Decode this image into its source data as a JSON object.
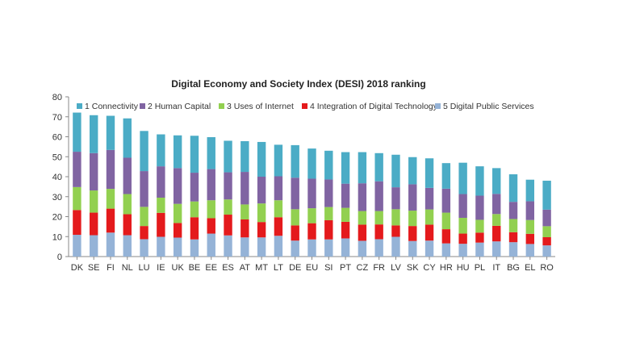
{
  "chart_data": {
    "type": "bar",
    "stacked": true,
    "title": "Digital Economy and Society Index (DESI) 2018 ranking",
    "xlabel": "",
    "ylabel": "",
    "ylim": [
      0,
      80
    ],
    "yticks": [
      0,
      10,
      20,
      30,
      40,
      50,
      60,
      70,
      80
    ],
    "legend_position": "top",
    "categories": [
      "DK",
      "SE",
      "FI",
      "NL",
      "LU",
      "IE",
      "UK",
      "BE",
      "EE",
      "ES",
      "AT",
      "MT",
      "LT",
      "DE",
      "EU",
      "SI",
      "PT",
      "CZ",
      "FR",
      "LV",
      "SK",
      "CY",
      "HR",
      "HU",
      "PL",
      "IT",
      "BG",
      "EL",
      "RO"
    ],
    "series": [
      {
        "name": "5 Digital Public Services",
        "color": "#95b3d7",
        "values": [
          10.9,
          10.7,
          12.0,
          10.7,
          8.7,
          9.9,
          9.5,
          8.6,
          11.5,
          10.6,
          9.6,
          9.6,
          10.4,
          8.0,
          8.6,
          8.6,
          9.1,
          7.9,
          8.7,
          9.9,
          7.8,
          8.0,
          6.6,
          6.4,
          7.0,
          7.6,
          7.2,
          6.3,
          5.6
        ]
      },
      {
        "name": "4 Integration of Digital Technology",
        "color": "#e41a1c",
        "values": [
          12.4,
          11.3,
          12.0,
          10.5,
          6.6,
          12.0,
          7.3,
          11.1,
          7.7,
          10.4,
          9.0,
          7.7,
          9.3,
          7.6,
          8.1,
          9.6,
          8.3,
          8.1,
          7.4,
          5.7,
          7.5,
          8.0,
          7.1,
          5.1,
          5.0,
          7.8,
          5.0,
          5.1,
          4.1
        ]
      },
      {
        "name": "3 Uses of Internet",
        "color": "#92d050",
        "values": [
          11.5,
          11.1,
          9.9,
          10.1,
          9.6,
          7.6,
          9.6,
          7.9,
          9.0,
          7.6,
          7.5,
          9.3,
          8.5,
          8.1,
          7.5,
          6.6,
          7.0,
          6.8,
          6.7,
          8.1,
          7.7,
          7.6,
          8.3,
          7.9,
          6.4,
          5.9,
          6.6,
          6.9,
          5.5
        ]
      },
      {
        "name": "2 Human Capital",
        "color": "#8064a2",
        "values": [
          17.7,
          18.7,
          19.5,
          18.2,
          17.9,
          15.7,
          17.9,
          14.4,
          15.6,
          13.6,
          16.3,
          13.4,
          12.0,
          15.8,
          14.8,
          13.8,
          12.1,
          13.9,
          14.9,
          11.0,
          13.2,
          10.8,
          12.0,
          11.9,
          12.1,
          10.1,
          8.6,
          9.4,
          8.3
        ]
      },
      {
        "name": "1 Connectivity",
        "color": "#4bacc6",
        "values": [
          19.6,
          19.0,
          17.1,
          19.7,
          20.1,
          16.0,
          16.4,
          18.5,
          16.0,
          15.8,
          15.4,
          17.4,
          15.8,
          16.3,
          15.1,
          14.4,
          15.8,
          15.6,
          14.1,
          16.3,
          13.6,
          14.8,
          12.8,
          15.7,
          14.7,
          12.9,
          13.8,
          10.8,
          14.5
        ]
      }
    ],
    "legend_order": [
      "1 Connectivity",
      "2 Human Capital",
      "3 Uses of Internet",
      "4 Integration of Digital Technology",
      "5 Digital Public Services"
    ]
  }
}
